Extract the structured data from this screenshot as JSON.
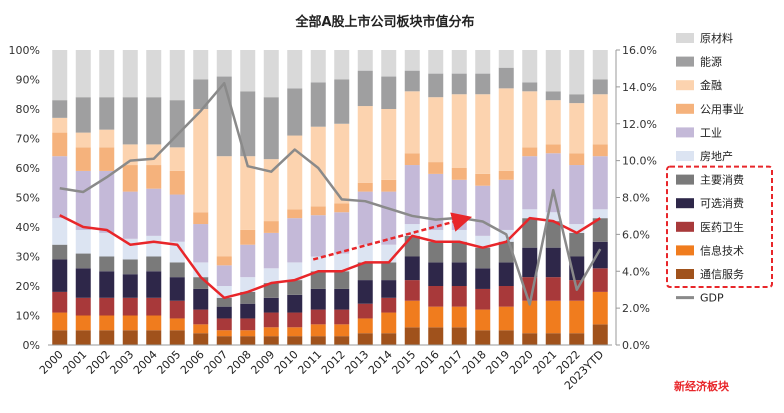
{
  "chart_data": {
    "type": "bar",
    "stacked": true,
    "title": "全部A股上市公司板块市值分布",
    "categories": [
      "2000",
      "2001",
      "2002",
      "2003",
      "2004",
      "2005",
      "2006",
      "2007",
      "2008",
      "2009",
      "2010",
      "2011",
      "2012",
      "2013",
      "2014",
      "2015",
      "2016",
      "2017",
      "2018",
      "2019",
      "2020",
      "2021",
      "2022",
      "2023YTD"
    ],
    "y_left": {
      "ticks": [
        "0%",
        "10%",
        "20%",
        "30%",
        "40%",
        "50%",
        "60%",
        "70%",
        "80%",
        "90%",
        "100%"
      ],
      "range": [
        0,
        100
      ]
    },
    "y_right": {
      "ticks": [
        "0.0%",
        "2.0%",
        "4.0%",
        "6.0%",
        "8.0%",
        "10.0%",
        "12.0%",
        "14.0%",
        "16.0%"
      ],
      "range": [
        0,
        16
      ]
    },
    "series": [
      {
        "name": "通信服务",
        "color": "#a0521c",
        "values": [
          5,
          5,
          5,
          5,
          5,
          5,
          4,
          3,
          3,
          3,
          3,
          3,
          3,
          4,
          4,
          6,
          6,
          6,
          5,
          5,
          4,
          4,
          4,
          7
        ]
      },
      {
        "name": "信息技术",
        "color": "#f07c1e",
        "values": [
          6,
          5,
          5,
          5,
          5,
          4,
          3,
          2,
          2,
          3,
          3,
          4,
          4,
          5,
          7,
          9,
          7,
          7,
          7,
          8,
          11,
          11,
          11,
          11
        ]
      },
      {
        "name": "医药卫生",
        "color": "#a8393a",
        "values": [
          7,
          6,
          6,
          6,
          6,
          6,
          5,
          4,
          4,
          5,
          5,
          5,
          5,
          5,
          5,
          7,
          7,
          7,
          7,
          7,
          8,
          8,
          7,
          8
        ]
      },
      {
        "name": "可选消费",
        "color": "#2e2749",
        "values": [
          11,
          10,
          9,
          8,
          9,
          8,
          7,
          4,
          5,
          5,
          6,
          7,
          7,
          8,
          6,
          8,
          8,
          8,
          7,
          8,
          10,
          10,
          8,
          9
        ]
      },
      {
        "name": "主要消费",
        "color": "#7a7a7a",
        "values": [
          5,
          5,
          5,
          5,
          5,
          5,
          4,
          3,
          4,
          5,
          5,
          6,
          6,
          6,
          6,
          7,
          7,
          7,
          7,
          7,
          10,
          9,
          8,
          8
        ]
      },
      {
        "name": "房地产",
        "color": "#dce4f2",
        "values": [
          9,
          8,
          8,
          7,
          7,
          7,
          5,
          4,
          5,
          5,
          6,
          5,
          6,
          6,
          6,
          4,
          4,
          4,
          4,
          4,
          3,
          3,
          3,
          3
        ]
      },
      {
        "name": "工业",
        "color": "#c4b9d8",
        "values": [
          21,
          20,
          21,
          16,
          16,
          16,
          13,
          7,
          11,
          12,
          15,
          14,
          14,
          18,
          18,
          20,
          19,
          17,
          17,
          17,
          18,
          20,
          20,
          18
        ]
      },
      {
        "name": "公用事业",
        "color": "#f5b27c",
        "values": [
          8,
          8,
          8,
          9,
          8,
          8,
          4,
          3,
          5,
          4,
          3,
          3,
          3,
          3,
          4,
          4,
          4,
          4,
          4,
          3,
          3,
          3,
          4,
          4
        ]
      },
      {
        "name": "金融",
        "color": "#fcd3af",
        "values": [
          5,
          5,
          6,
          7,
          7,
          8,
          35,
          34,
          25,
          21,
          25,
          27,
          27,
          26,
          24,
          21,
          22,
          25,
          27,
          28,
          19,
          15,
          17,
          17
        ]
      },
      {
        "name": "能源",
        "color": "#9f9fa0",
        "values": [
          6,
          12,
          11,
          16,
          16,
          16,
          10,
          27,
          22,
          21,
          16,
          15,
          15,
          12,
          11,
          7,
          8,
          7,
          7,
          7,
          3,
          3,
          3,
          5
        ]
      },
      {
        "name": "原材料",
        "color": "#d9d9d9",
        "values": [
          17,
          16,
          16,
          16,
          16,
          17,
          10,
          9,
          14,
          16,
          13,
          11,
          10,
          7,
          9,
          7,
          8,
          8,
          8,
          6,
          11,
          14,
          15,
          10
        ]
      }
    ],
    "new_economy": {
      "label": "新经济板块",
      "line_color": "#e8262a",
      "values": [
        44,
        40,
        39,
        34,
        35,
        34,
        23,
        16,
        18,
        21,
        22,
        25,
        25,
        28,
        28,
        37,
        35,
        35,
        33,
        35,
        43,
        42,
        38,
        43
      ]
    },
    "gdp": {
      "name": "GDP",
      "color": "#8a8a8a",
      "values": [
        8.5,
        8.3,
        9.1,
        10.0,
        10.1,
        11.4,
        12.7,
        14.2,
        9.7,
        9.4,
        10.6,
        9.6,
        7.9,
        7.8,
        7.4,
        7.0,
        6.8,
        6.9,
        6.7,
        6.0,
        2.2,
        8.4,
        3.0,
        5.2
      ]
    },
    "legend": [
      "原材料",
      "能源",
      "金融",
      "公用事业",
      "工业",
      "房地产",
      "主要消费",
      "可选消费",
      "医药卫生",
      "信息技术",
      "通信服务",
      "GDP"
    ],
    "legend_position": "right",
    "grid": false
  }
}
